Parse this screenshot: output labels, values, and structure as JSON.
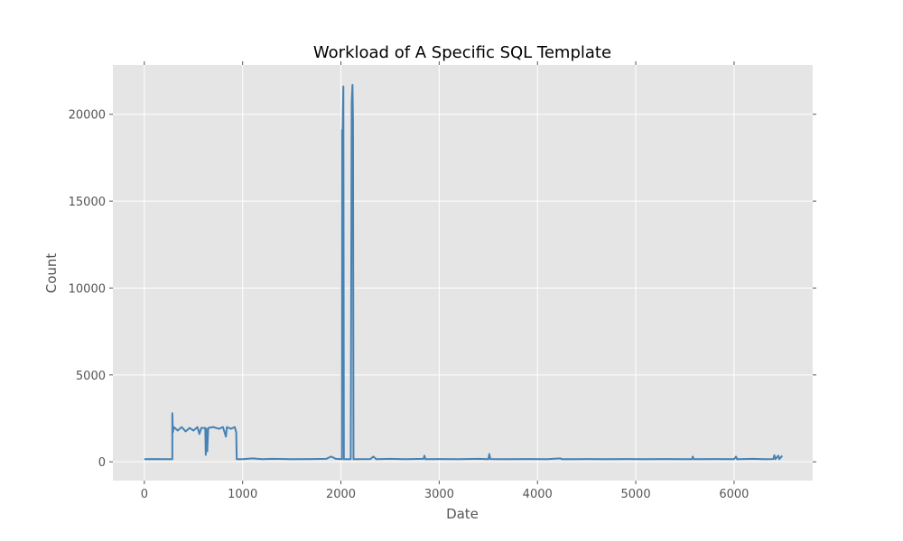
{
  "chart_data": {
    "type": "line",
    "title": "Workload of A Specific SQL Template",
    "xlabel": "Date",
    "ylabel": "Count",
    "xlim": [
      -320,
      6800
    ],
    "ylim": [
      -1080,
      22840
    ],
    "xticks": [
      0,
      1000,
      2000,
      3000,
      4000,
      5000,
      6000
    ],
    "yticks": [
      0,
      5000,
      10000,
      15000,
      20000
    ],
    "grid": true,
    "background_color": "#e5e5e5",
    "series": [
      {
        "color": "#4682b4",
        "points": [
          [
            0,
            150
          ],
          [
            100,
            160
          ],
          [
            200,
            150
          ],
          [
            285,
            150
          ],
          [
            285,
            2800
          ],
          [
            290,
            1700
          ],
          [
            300,
            2000
          ],
          [
            340,
            1800
          ],
          [
            380,
            2000
          ],
          [
            420,
            1750
          ],
          [
            460,
            1950
          ],
          [
            500,
            1800
          ],
          [
            540,
            2000
          ],
          [
            560,
            1600
          ],
          [
            580,
            1950
          ],
          [
            620,
            1950
          ],
          [
            625,
            400
          ],
          [
            630,
            1900
          ],
          [
            640,
            600
          ],
          [
            650,
            1950
          ],
          [
            700,
            2000
          ],
          [
            760,
            1900
          ],
          [
            800,
            2000
          ],
          [
            830,
            1450
          ],
          [
            840,
            2000
          ],
          [
            880,
            1900
          ],
          [
            920,
            2000
          ],
          [
            935,
            1700
          ],
          [
            940,
            150
          ],
          [
            1000,
            150
          ],
          [
            1100,
            200
          ],
          [
            1200,
            150
          ],
          [
            1300,
            170
          ],
          [
            1500,
            150
          ],
          [
            1700,
            160
          ],
          [
            1850,
            170
          ],
          [
            1900,
            300
          ],
          [
            1950,
            170
          ],
          [
            2010,
            150
          ],
          [
            2012,
            19100
          ],
          [
            2018,
            19100
          ],
          [
            2025,
            21600
          ],
          [
            2030,
            150
          ],
          [
            2100,
            150
          ],
          [
            2110,
            20700
          ],
          [
            2118,
            21700
          ],
          [
            2123,
            19600
          ],
          [
            2128,
            150
          ],
          [
            2300,
            160
          ],
          [
            2330,
            300
          ],
          [
            2360,
            150
          ],
          [
            2500,
            170
          ],
          [
            2650,
            150
          ],
          [
            2840,
            170
          ],
          [
            2850,
            350
          ],
          [
            2860,
            150
          ],
          [
            3000,
            160
          ],
          [
            3200,
            150
          ],
          [
            3400,
            170
          ],
          [
            3500,
            150
          ],
          [
            3510,
            450
          ],
          [
            3520,
            160
          ],
          [
            3700,
            150
          ],
          [
            3900,
            160
          ],
          [
            4100,
            150
          ],
          [
            4230,
            200
          ],
          [
            4250,
            150
          ],
          [
            4500,
            160
          ],
          [
            4700,
            150
          ],
          [
            4900,
            160
          ],
          [
            5100,
            150
          ],
          [
            5300,
            160
          ],
          [
            5570,
            150
          ],
          [
            5580,
            300
          ],
          [
            5590,
            150
          ],
          [
            5800,
            160
          ],
          [
            6000,
            150
          ],
          [
            6020,
            300
          ],
          [
            6030,
            150
          ],
          [
            6200,
            170
          ],
          [
            6300,
            150
          ],
          [
            6400,
            160
          ],
          [
            6410,
            380
          ],
          [
            6420,
            150
          ],
          [
            6450,
            350
          ],
          [
            6460,
            150
          ],
          [
            6490,
            350
          ]
        ]
      }
    ]
  }
}
